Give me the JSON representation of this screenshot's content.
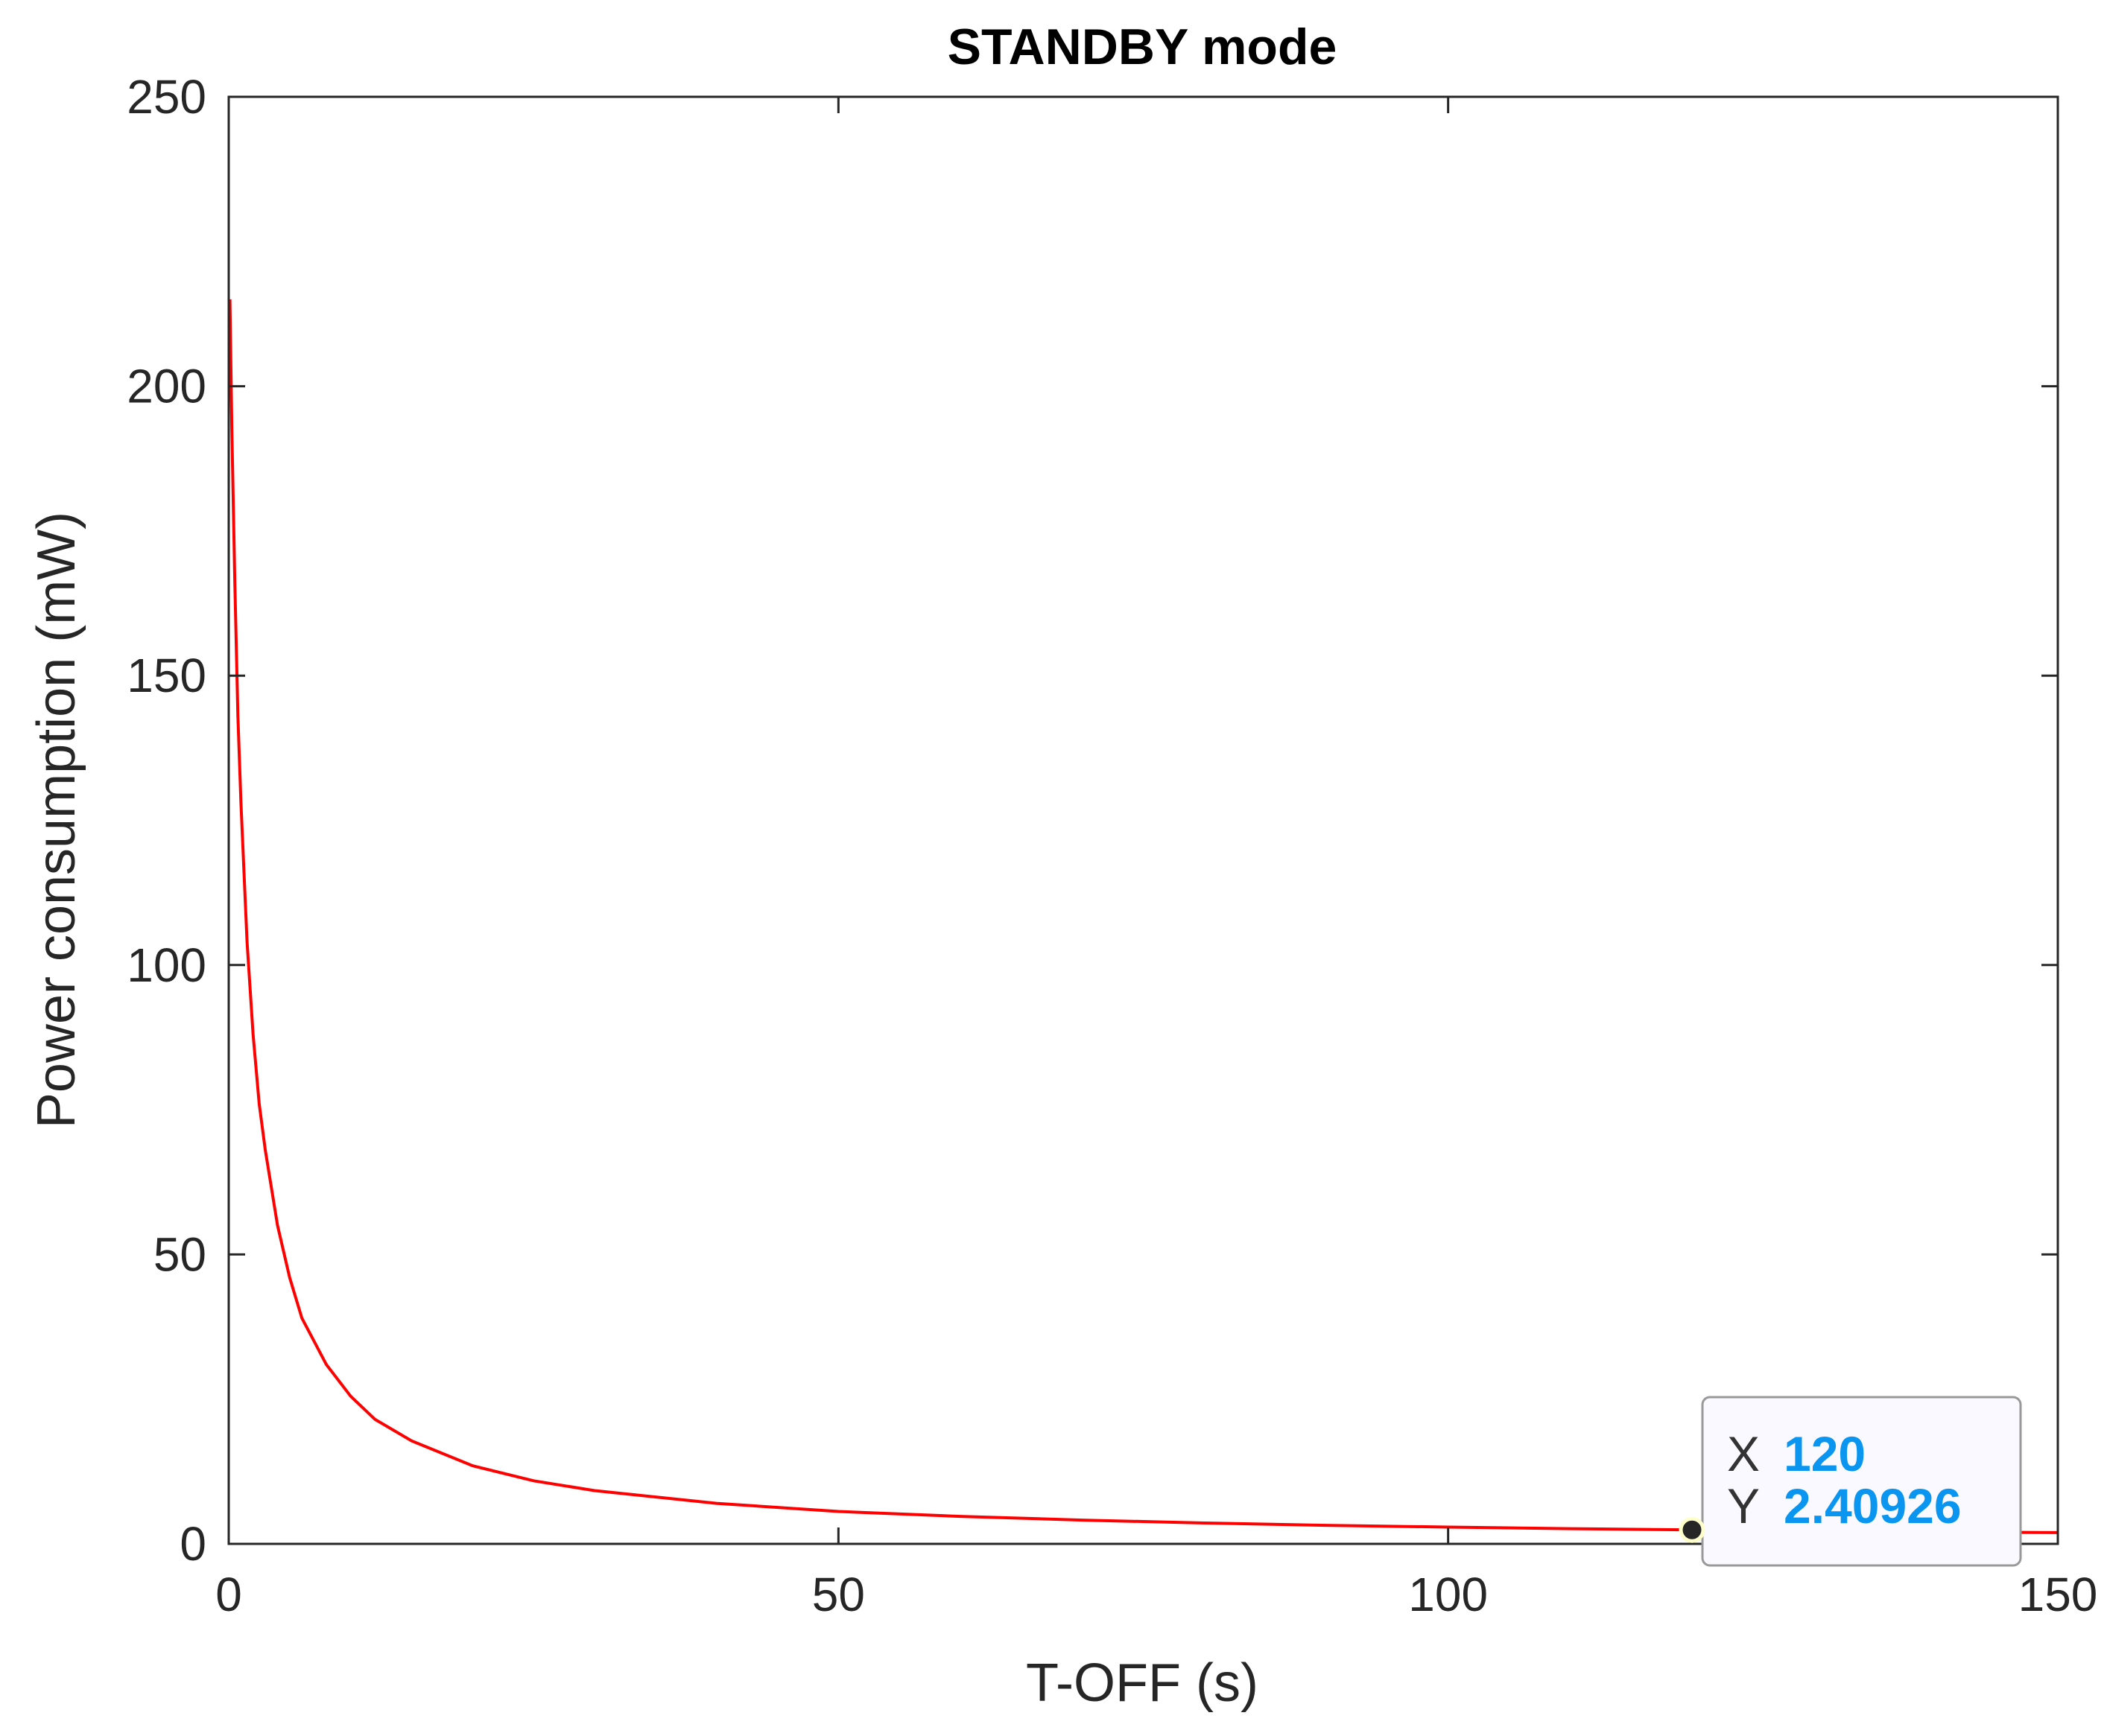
{
  "chart_data": {
    "type": "line",
    "title": "STANDBY mode",
    "xlabel": "T-OFF (s)",
    "ylabel": "Power consumption (mW)",
    "xlim": [
      0,
      150
    ],
    "ylim": [
      0,
      250
    ],
    "xticks": [
      0,
      50,
      100,
      150
    ],
    "yticks": [
      0,
      50,
      100,
      150,
      200,
      250
    ],
    "xtick_labels": [
      "0",
      "50",
      "100",
      "150"
    ],
    "ytick_labels": [
      "0",
      "50",
      "100",
      "150",
      "200",
      "250"
    ],
    "grid": false,
    "line_color": "#ff0000",
    "series": [
      {
        "x": [
          0.1,
          0.25,
          0.5,
          0.75,
          1,
          1.5,
          2,
          2.5,
          3,
          4,
          5,
          6,
          7,
          8,
          10,
          12,
          15,
          20,
          25,
          30,
          40,
          50,
          60,
          70,
          80,
          90,
          100,
          110,
          120,
          130,
          140,
          150
        ],
        "y": [
          215,
          193,
          166,
          143,
          128,
          104,
          88,
          76,
          68,
          55,
          46,
          39,
          35,
          31,
          25.5,
          21.5,
          17.8,
          13.5,
          10.9,
          9.2,
          7.0,
          5.6,
          4.75,
          4.1,
          3.6,
          3.2,
          2.9,
          2.63,
          2.41,
          2.23,
          2.07,
          1.94
        ]
      }
    ],
    "datatip": {
      "x_label": "X",
      "x_value": "120",
      "y_label": "Y",
      "y_value": "2.40926",
      "point": [
        120,
        2.40926
      ]
    },
    "colors": {
      "axes": "#262626",
      "line": "#ff0000",
      "tip_value": "#0a96f0",
      "tip_border": "#999999",
      "tip_background": "#f9f9ff",
      "marker": "#262626"
    }
  }
}
